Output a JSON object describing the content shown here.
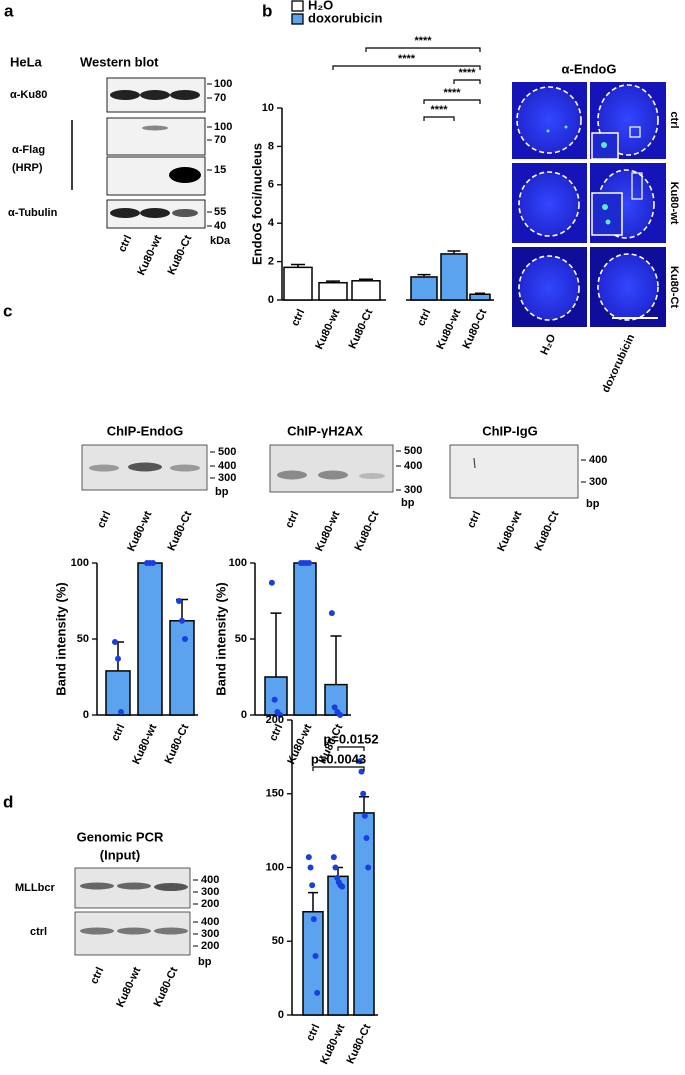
{
  "panel_labels": [
    "a",
    "b",
    "c",
    "d"
  ],
  "blot_a": {
    "cell_line": "HeLa",
    "title": "Western blot",
    "antibodies": [
      "α-Ku80",
      "α-Flag",
      "(HRP)",
      "α-Tubulin"
    ],
    "markers": [
      100,
      70,
      100,
      70,
      15,
      55,
      40
    ],
    "unit": "kDa",
    "lanes": [
      "ctrl",
      "Ku80-wt",
      "Ku80-Ct"
    ]
  },
  "imaging_b": {
    "title": "α-EndoG",
    "rows": [
      "ctrl",
      "Ku80-wt",
      "Ku80-Ct"
    ],
    "columns": [
      "H₂O",
      "doxorubicin"
    ]
  },
  "gels_c": [
    {
      "title": "ChIP-EndoG",
      "markers": [
        500,
        400,
        300
      ],
      "unit": "bp",
      "lanes": [
        "ctrl",
        "Ku80-wt",
        "Ku80-Ct"
      ]
    },
    {
      "title": "ChIP-γH2AX",
      "markers": [
        500,
        400,
        300
      ],
      "unit": "bp",
      "lanes": [
        "ctrl",
        "Ku80-wt",
        "Ku80-Ct"
      ]
    },
    {
      "title": "ChIP-IgG",
      "markers": [
        400,
        300
      ],
      "unit": "bp",
      "lanes": [
        "ctrl",
        "Ku80-wt",
        "Ku80-Ct"
      ]
    }
  ],
  "gel_d": {
    "title": [
      "Genomic PCR",
      "(Input)"
    ],
    "rows": [
      "MLLbcr",
      "ctrl"
    ],
    "markers": [
      [
        400,
        300,
        200
      ],
      [
        400,
        300,
        200
      ]
    ],
    "unit": "bp",
    "lanes": [
      "ctrl",
      "Ku80-wt",
      "Ku80-Ct"
    ]
  },
  "chart_data": [
    {
      "type": "bar",
      "y_label": "EndoG foci/nucleus",
      "categories": [
        "ctrl",
        "Ku80-wt",
        "Ku80-Ct",
        "ctrl",
        "Ku80-wt",
        "Ku80-Ct"
      ],
      "series": [
        {
          "name": "H₂O",
          "color": "#ffffff",
          "values": [
            1.7,
            0.9,
            1.0,
            null,
            null,
            null
          ],
          "errors": [
            0.15,
            0.08,
            0.08,
            null,
            null,
            null
          ]
        },
        {
          "name": "doxorubicin",
          "color": "#5ba3ef",
          "values": [
            null,
            null,
            null,
            1.2,
            2.4,
            0.3
          ],
          "errors": [
            null,
            null,
            null,
            0.12,
            0.15,
            0.05
          ]
        }
      ],
      "ylim": [
        0,
        10
      ],
      "yticks": [
        0,
        2,
        4,
        6,
        8,
        10
      ],
      "annotations": [
        "****",
        "****",
        "****",
        "****",
        "****"
      ]
    },
    {
      "type": "bar",
      "y_label": "Band intensity (%)",
      "categories": [
        "ctrl",
        "Ku80-wt",
        "Ku80-Ct"
      ],
      "series": [
        {
          "color": "#5ba3ef",
          "values": [
            29,
            100,
            62
          ],
          "errors": [
            19,
            0,
            14
          ],
          "points": [
            [
              48,
              37,
              2
            ],
            [
              100,
              100,
              100
            ],
            [
              75,
              62,
              50
            ]
          ]
        }
      ],
      "ylim": [
        0,
        100
      ],
      "yticks": [
        0,
        50,
        100
      ]
    },
    {
      "type": "bar",
      "y_label": "Band intensity (%)",
      "categories": [
        "ctrl",
        "Ku80-wt",
        "Ku80-Ct"
      ],
      "series": [
        {
          "color": "#5ba3ef",
          "values": [
            25,
            100,
            20
          ],
          "errors": [
            42,
            0,
            32
          ],
          "points": [
            [
              87,
              10,
              2,
              0
            ],
            [
              100,
              100,
              100,
              100
            ],
            [
              67,
              5,
              2,
              0
            ]
          ]
        }
      ],
      "ylim": [
        0,
        100
      ],
      "yticks": [
        0,
        50,
        100
      ]
    },
    {
      "type": "bar",
      "categories": [
        "ctrl",
        "Ku80-wt",
        "Ku80-Ct"
      ],
      "series": [
        {
          "color": "#5ba3ef",
          "values": [
            70,
            94,
            137
          ],
          "errors": [
            13,
            6,
            11
          ],
          "points": [
            [
              107,
              100,
              88,
              65,
              40,
              15
            ],
            [
              107,
              100,
              93,
              90,
              88,
              87
            ],
            [
              172,
              165,
              150,
              135,
              120,
              100
            ]
          ]
        }
      ],
      "ylim": [
        0,
        200
      ],
      "yticks": [
        0,
        50,
        100,
        150,
        200
      ],
      "annotations": [
        "p=0.0043",
        "p=0.0152"
      ]
    }
  ]
}
